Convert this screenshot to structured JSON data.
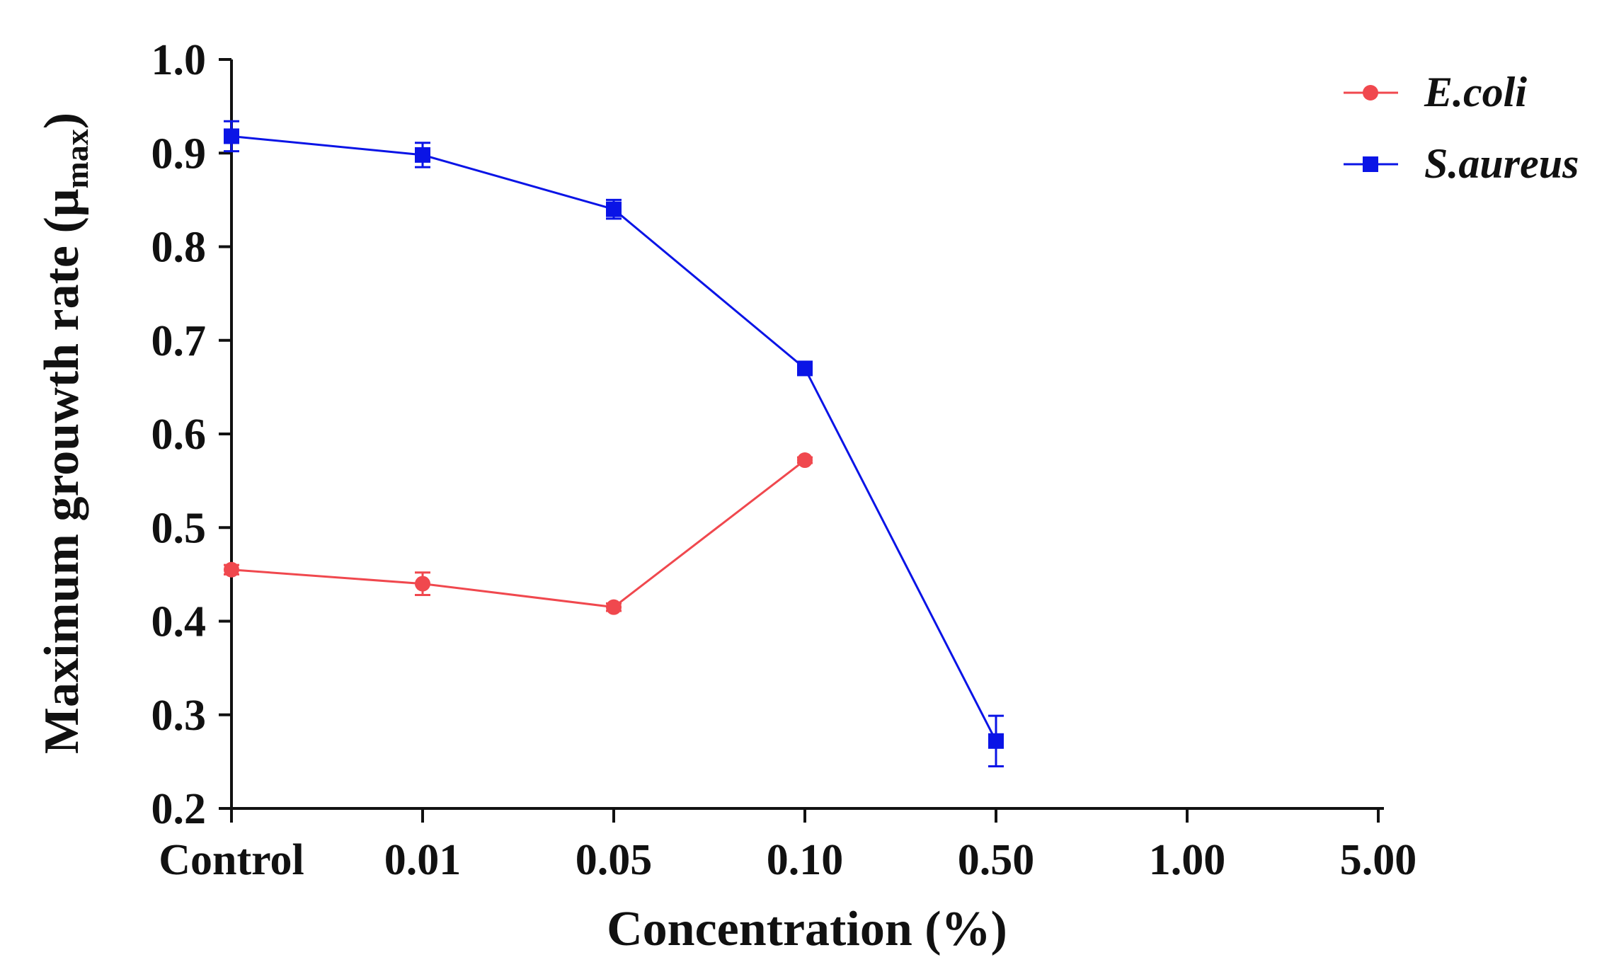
{
  "chart_data": {
    "type": "line",
    "title": "",
    "xlabel": "Concentration (%)",
    "ylabel": "Maximum grouwth rate (",
    "ylabel_symbol": "μ",
    "ylabel_subscript": "max",
    "ylabel_close": ")",
    "categories": [
      "Control",
      "0.01",
      "0.05",
      "0.10",
      "0.50",
      "1.00",
      "5.00"
    ],
    "ylim": [
      0.2,
      1.0
    ],
    "yticks": [
      "0.2",
      "0.3",
      "0.4",
      "0.5",
      "0.6",
      "0.7",
      "0.8",
      "0.9",
      "1.0"
    ],
    "legend_position": "top-right",
    "series": [
      {
        "name": "E.coli",
        "color": "#f0484e",
        "marker": "circle",
        "values": [
          0.455,
          0.44,
          0.415,
          0.572,
          null,
          null,
          null
        ],
        "errors": [
          0.005,
          0.012,
          0.004,
          0.003,
          null,
          null,
          null
        ]
      },
      {
        "name": "S.aureus",
        "color": "#0a14e6",
        "marker": "square",
        "values": [
          0.918,
          0.898,
          0.84,
          0.67,
          0.272,
          null,
          null
        ],
        "errors": [
          0.016,
          0.013,
          0.01,
          0.004,
          0.027,
          null,
          null
        ]
      }
    ]
  }
}
